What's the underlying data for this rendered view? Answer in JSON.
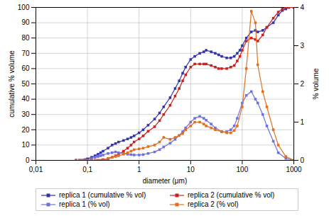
{
  "chart_data": {
    "type": "line",
    "xlabel": "diameter (μm)",
    "ylabel": "cumulative % volume",
    "y2label": "% volume",
    "log": "x",
    "grid": true,
    "legend": "bottom",
    "xlim": [
      0.01,
      1000
    ],
    "xticks": [
      {
        "value": 0.01,
        "label": "0,01"
      },
      {
        "value": 0.1,
        "label": "0,1"
      },
      1,
      10,
      100,
      1000
    ],
    "ylim": [
      0,
      100
    ],
    "yticks": [
      0,
      10,
      20,
      30,
      40,
      50,
      60,
      70,
      80,
      90,
      100
    ],
    "y2lim": [
      0,
      4
    ],
    "y2ticks": [
      0,
      1,
      2,
      3,
      4
    ],
    "series": [
      {
        "name": "replica 1 (cumulative % vol)",
        "color": "#3333aa",
        "marker": "square",
        "axis": "y",
        "x": [
          0.06,
          0.07,
          0.08,
          0.09,
          0.1,
          0.12,
          0.14,
          0.16,
          0.18,
          0.2,
          0.25,
          0.3,
          0.35,
          0.4,
          0.5,
          0.6,
          0.7,
          0.8,
          1.0,
          1.2,
          1.5,
          2.0,
          2.5,
          3.0,
          4.0,
          5.0,
          6.0,
          7.0,
          8.0,
          10.0,
          12.0,
          15.0,
          18.0,
          20.0,
          25.0,
          30.0,
          35.0,
          40.0,
          50.0,
          60.0,
          70.0,
          80.0,
          90.0,
          100.0,
          120.0,
          150.0,
          180.0,
          200.0,
          250.0,
          300.0,
          400.0,
          500.0,
          600.0,
          700.0,
          800.0,
          1000.0
        ],
        "values": [
          0,
          0,
          0,
          0.5,
          1,
          2,
          3,
          4,
          5,
          6,
          8,
          10,
          11,
          12,
          13,
          14,
          15,
          16,
          18,
          20,
          23,
          27,
          31,
          35,
          41,
          47,
          52,
          57,
          61,
          66,
          68,
          70,
          71,
          72,
          71,
          70,
          69,
          68,
          67,
          67,
          68,
          70,
          72,
          75,
          80,
          84,
          85,
          84,
          85,
          87,
          90,
          95,
          98,
          99,
          100,
          100
        ]
      },
      {
        "name": "replica 2 (cumulative % vol)",
        "color": "#cc2020",
        "marker": "square",
        "axis": "y",
        "x": [
          0.06,
          0.07,
          0.08,
          0.09,
          0.1,
          0.12,
          0.14,
          0.16,
          0.18,
          0.2,
          0.25,
          0.3,
          0.35,
          0.4,
          0.5,
          0.6,
          0.7,
          0.8,
          1.0,
          1.2,
          1.5,
          2.0,
          2.5,
          3.0,
          4.0,
          5.0,
          6.0,
          7.0,
          8.0,
          10.0,
          12.0,
          15.0,
          18.0,
          20.0,
          25.0,
          30.0,
          35.0,
          40.0,
          50.0,
          60.0,
          70.0,
          80.0,
          90.0,
          100.0,
          120.0,
          150.0,
          180.0,
          200.0,
          250.0,
          300.0,
          400.0,
          500.0,
          600.0,
          700.0,
          800.0,
          1000.0
        ],
        "values": [
          0,
          0,
          0,
          0,
          0,
          0,
          0,
          0,
          0,
          0.5,
          1,
          2,
          3,
          4,
          6,
          8,
          10,
          12,
          14,
          16,
          19,
          22,
          26,
          30,
          36,
          42,
          47,
          52,
          56,
          61,
          63,
          63,
          63,
          63,
          62,
          61,
          60,
          60,
          60,
          61,
          62,
          65,
          68,
          72,
          78,
          80,
          79,
          78,
          82,
          87,
          93,
          97,
          99,
          100,
          100,
          100
        ]
      },
      {
        "name": "replica 1 (% vol)",
        "color": "#7070dd",
        "marker": "square",
        "axis": "y2",
        "x": [
          0.06,
          0.07,
          0.08,
          0.09,
          0.1,
          0.12,
          0.14,
          0.16,
          0.18,
          0.2,
          0.25,
          0.3,
          0.35,
          0.4,
          0.5,
          0.6,
          0.7,
          0.8,
          1.0,
          1.2,
          1.5,
          2.0,
          2.5,
          3.0,
          4.0,
          5.0,
          6.0,
          7.0,
          8.0,
          10.0,
          12.0,
          15.0,
          18.0,
          20.0,
          25.0,
          30.0,
          40.0,
          50.0,
          60.0,
          70.0,
          80.0,
          100.0,
          120.0,
          150.0,
          180.0,
          200.0,
          250.0,
          300.0,
          400.0,
          500.0,
          700.0,
          1000.0
        ],
        "values": [
          0,
          0,
          0,
          0,
          0,
          0.05,
          0.08,
          0.1,
          0.12,
          0.14,
          0.18,
          0.2,
          0.22,
          0.2,
          0.18,
          0.16,
          0.15,
          0.14,
          0.14,
          0.15,
          0.18,
          0.22,
          0.28,
          0.35,
          0.45,
          0.55,
          0.65,
          0.75,
          0.85,
          1.0,
          1.1,
          1.15,
          1.1,
          1.05,
          0.95,
          0.85,
          0.75,
          0.75,
          0.8,
          0.9,
          1.1,
          1.5,
          1.7,
          1.8,
          1.6,
          1.5,
          1.2,
          0.9,
          0.5,
          0.2,
          0.05,
          0.0
        ]
      },
      {
        "name": "replica 2 (% vol)",
        "color": "#e07020",
        "marker": "square",
        "axis": "y2",
        "x": [
          0.06,
          0.07,
          0.08,
          0.09,
          0.1,
          0.12,
          0.14,
          0.16,
          0.18,
          0.2,
          0.25,
          0.3,
          0.35,
          0.4,
          0.5,
          0.6,
          0.7,
          0.8,
          1.0,
          1.2,
          1.5,
          2.0,
          2.5,
          3.0,
          4.0,
          5.0,
          6.0,
          7.0,
          8.0,
          10.0,
          12.0,
          15.0,
          18.0,
          20.0,
          25.0,
          30.0,
          40.0,
          50.0,
          60.0,
          70.0,
          80.0,
          100.0,
          120.0,
          150.0,
          180.0,
          200.0,
          250.0,
          300.0,
          400.0,
          500.0,
          700.0,
          1000.0
        ],
        "values": [
          0,
          0,
          0,
          0,
          0,
          0,
          0,
          0,
          0,
          0,
          0.05,
          0.08,
          0.1,
          0.12,
          0.16,
          0.2,
          0.24,
          0.28,
          0.3,
          0.32,
          0.36,
          0.4,
          0.48,
          0.6,
          0.55,
          0.6,
          0.65,
          0.7,
          0.8,
          0.9,
          1.0,
          1.0,
          0.95,
          0.9,
          0.85,
          0.8,
          0.75,
          0.72,
          0.72,
          0.78,
          0.9,
          1.4,
          2.4,
          3.9,
          3.6,
          2.5,
          1.8,
          1.4,
          0.8,
          0.4,
          0.1,
          0.0
        ]
      }
    ]
  }
}
